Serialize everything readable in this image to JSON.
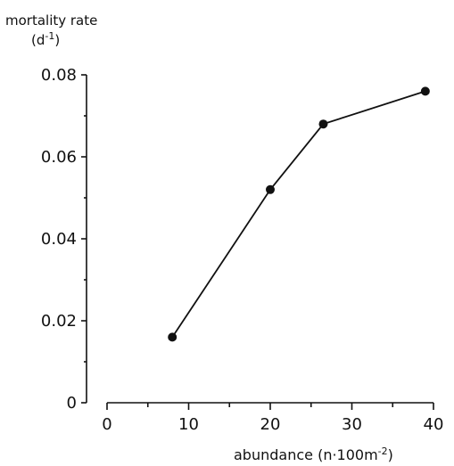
{
  "chart_data": {
    "type": "line",
    "ylabel_line1": "mortality rate",
    "ylabel_line2_base": "(d",
    "ylabel_line2_sup": "-1",
    "ylabel_line2_end": ")",
    "xlabel_base": "abundance (n·100m",
    "xlabel_sup": "-2",
    "xlabel_end": ")",
    "xlim": [
      0,
      40
    ],
    "ylim": [
      0,
      0.08
    ],
    "xticks": [
      0,
      10,
      20,
      30,
      40
    ],
    "xtick_labels": [
      "0",
      "10",
      "20",
      "30",
      "40"
    ],
    "xminor_ticks": [
      5,
      15,
      25,
      35
    ],
    "yticks": [
      0,
      0.02,
      0.04,
      0.06,
      0.08
    ],
    "ytick_labels": [
      "0",
      "0.02",
      "0.04",
      "0.06",
      "0.08"
    ],
    "yminor_ticks": [
      0.01,
      0.03,
      0.05,
      0.07
    ],
    "grid": false,
    "series": [
      {
        "x": [
          8,
          20,
          26.5,
          39
        ],
        "y": [
          0.016,
          0.052,
          0.068,
          0.076
        ]
      }
    ],
    "colors": {
      "ink": "#111111",
      "background": "#ffffff"
    }
  }
}
